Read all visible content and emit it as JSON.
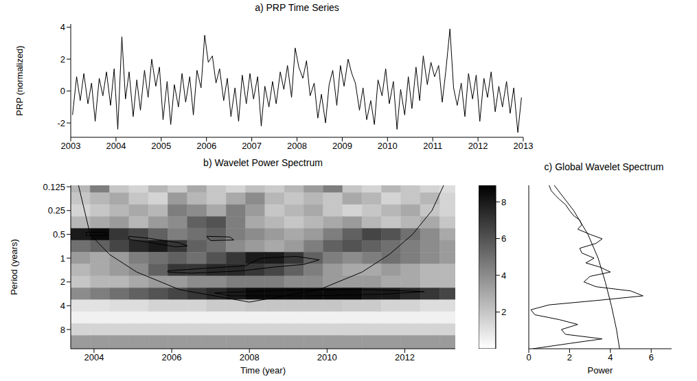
{
  "chart_data": [
    {
      "type": "line",
      "title": "a) PRP Time Series",
      "ylabel": "PRP (normalized)",
      "color": "#000000",
      "xlim": [
        2003,
        2013
      ],
      "xticks": [
        2003,
        2004,
        2005,
        2006,
        2007,
        2008,
        2009,
        2010,
        2011,
        2012,
        2013
      ],
      "ylim": [
        -2.9,
        4.2
      ],
      "yticks": [
        -2,
        0,
        2,
        4
      ],
      "x": [
        2003.04,
        2003.13,
        2003.21,
        2003.29,
        2003.38,
        2003.46,
        2003.54,
        2003.63,
        2003.71,
        2003.79,
        2003.88,
        2003.96,
        2004.04,
        2004.13,
        2004.21,
        2004.29,
        2004.38,
        2004.46,
        2004.54,
        2004.63,
        2004.71,
        2004.79,
        2004.88,
        2004.96,
        2005.04,
        2005.13,
        2005.21,
        2005.29,
        2005.38,
        2005.46,
        2005.54,
        2005.63,
        2005.71,
        2005.79,
        2005.88,
        2005.96,
        2006.04,
        2006.13,
        2006.21,
        2006.29,
        2006.38,
        2006.46,
        2006.54,
        2006.63,
        2006.71,
        2006.79,
        2006.88,
        2006.96,
        2007.04,
        2007.13,
        2007.21,
        2007.29,
        2007.38,
        2007.46,
        2007.54,
        2007.63,
        2007.71,
        2007.79,
        2007.88,
        2007.96,
        2008.04,
        2008.13,
        2008.21,
        2008.29,
        2008.38,
        2008.46,
        2008.54,
        2008.63,
        2008.71,
        2008.79,
        2008.88,
        2008.96,
        2009.04,
        2009.13,
        2009.21,
        2009.29,
        2009.38,
        2009.46,
        2009.54,
        2009.63,
        2009.71,
        2009.79,
        2009.88,
        2009.96,
        2010.04,
        2010.13,
        2010.21,
        2010.29,
        2010.38,
        2010.46,
        2010.54,
        2010.63,
        2010.71,
        2010.79,
        2010.88,
        2010.96,
        2011.04,
        2011.13,
        2011.21,
        2011.29,
        2011.38,
        2011.46,
        2011.54,
        2011.63,
        2011.71,
        2011.79,
        2011.88,
        2011.96,
        2012.04,
        2012.13,
        2012.21,
        2012.29,
        2012.38,
        2012.46,
        2012.54,
        2012.63,
        2012.71,
        2012.79,
        2012.88,
        2012.96
      ],
      "values": [
        -1.5,
        0.9,
        -0.6,
        1.1,
        -0.8,
        0.5,
        -1.9,
        0.8,
        -0.3,
        1.2,
        -0.9,
        1.4,
        -2.4,
        3.4,
        -0.5,
        1.2,
        -1.6,
        0.7,
        -1.2,
        1.3,
        -0.4,
        2.0,
        0.3,
        1.5,
        -1.8,
        0.6,
        -2.1,
        0.4,
        -1.0,
        1.1,
        -0.7,
        0.9,
        -1.5,
        1.3,
        0.2,
        3.5,
        1.8,
        2.2,
        0.5,
        1.4,
        -0.6,
        0.8,
        -1.6,
        0.2,
        -1.9,
        1.0,
        -0.8,
        1.1,
        -0.5,
        0.9,
        -2.2,
        0.3,
        -1.0,
        0.6,
        -0.8,
        1.2,
        0.1,
        1.6,
        -0.4,
        2.7,
        1.5,
        0.8,
        1.9,
        -0.3,
        0.5,
        -1.7,
        -0.2,
        -2.0,
        0.4,
        1.3,
        -0.9,
        1.6,
        0.3,
        2.0,
        1.1,
        0.5,
        -1.2,
        0.2,
        -1.8,
        -0.6,
        -2.1,
        0.7,
        -0.3,
        1.4,
        -0.8,
        0.6,
        -2.4,
        0.1,
        -1.5,
        0.9,
        -1.1,
        1.5,
        -0.6,
        2.2,
        0.4,
        1.8,
        0.9,
        1.6,
        -0.7,
        1.3,
        3.9,
        0.2,
        -0.9,
        0.5,
        -1.6,
        1.1,
        -0.5,
        1.0,
        -1.9,
        0.8,
        -0.4,
        1.2,
        -1.3,
        0.3,
        -1.0,
        0.6,
        -1.4,
        0.2,
        -2.6,
        -0.4
      ]
    },
    {
      "type": "heatmap",
      "title": "b) Wavelet Power Spectrum",
      "xlabel": "Time (year)",
      "ylabel": "Period (years)",
      "log": "y",
      "xlim": [
        2003.4,
        2013.3
      ],
      "xticks": [
        2004,
        2006,
        2008,
        2010,
        2012
      ],
      "ylim": [
        0.12,
        14
      ],
      "yticks": [
        0.125,
        0.25,
        0.5,
        1,
        2,
        4,
        8
      ],
      "x": [
        2003.65,
        2004.15,
        2004.65,
        2005.15,
        2005.65,
        2006.15,
        2006.65,
        2007.15,
        2007.65,
        2008.15,
        2008.65,
        2009.15,
        2009.65,
        2010.15,
        2010.65,
        2011.15,
        2011.65,
        2012.15,
        2012.65,
        2013.15
      ],
      "y": [
        0.125,
        0.177,
        0.25,
        0.354,
        0.5,
        0.707,
        1,
        1.41,
        2,
        2.83,
        4,
        5.66,
        8,
        11.3
      ],
      "cells": [
        [
          2.5,
          4.5,
          2.0,
          1.5,
          2.5,
          1.8,
          3.0,
          2.0,
          1.5,
          2.2,
          1.8,
          2.5,
          3.5,
          4.5,
          2.0,
          1.5,
          2.5,
          2.0,
          1.5,
          1.2
        ],
        [
          2.0,
          2.5,
          3.0,
          2.0,
          1.5,
          3.5,
          2.5,
          2.0,
          3.0,
          4.0,
          2.5,
          2.0,
          2.5,
          2.0,
          3.0,
          2.5,
          1.5,
          2.0,
          2.5,
          1.5
        ],
        [
          1.5,
          2.0,
          2.5,
          3.0,
          2.5,
          4.5,
          4.0,
          3.0,
          4.5,
          3.5,
          2.0,
          2.5,
          3.0,
          2.0,
          1.5,
          2.0,
          2.5,
          3.0,
          2.0,
          1.5
        ],
        [
          2.5,
          3.0,
          3.5,
          2.5,
          3.5,
          4.0,
          5.5,
          6.0,
          4.5,
          3.0,
          2.5,
          2.0,
          2.5,
          3.0,
          3.5,
          2.5,
          2.0,
          2.5,
          3.0,
          2.0
        ],
        [
          8.0,
          8.5,
          7.0,
          6.5,
          5.5,
          4.5,
          5.0,
          5.5,
          4.5,
          4.0,
          3.5,
          3.0,
          3.5,
          4.5,
          5.5,
          6.5,
          6.0,
          5.0,
          4.0,
          3.0
        ],
        [
          5.0,
          5.5,
          6.5,
          7.5,
          8.0,
          7.0,
          5.5,
          5.0,
          4.0,
          3.5,
          3.0,
          3.5,
          4.5,
          5.5,
          6.0,
          5.5,
          5.0,
          4.5,
          4.0,
          3.5
        ],
        [
          3.5,
          3.0,
          3.5,
          4.5,
          5.0,
          5.5,
          5.0,
          6.0,
          7.0,
          8.0,
          8.0,
          7.0,
          5.5,
          4.5,
          4.0,
          4.5,
          5.0,
          4.5,
          4.0,
          3.5
        ],
        [
          2.5,
          3.0,
          3.5,
          4.0,
          5.5,
          7.0,
          7.0,
          7.5,
          7.5,
          7.0,
          6.5,
          5.5,
          4.5,
          3.5,
          3.0,
          3.0,
          3.5,
          3.0,
          2.5,
          2.5
        ],
        [
          2.0,
          2.5,
          2.5,
          3.0,
          3.5,
          3.5,
          4.0,
          4.0,
          4.5,
          4.5,
          4.5,
          4.0,
          4.0,
          3.5,
          3.5,
          3.5,
          3.0,
          3.0,
          2.5,
          2.5
        ],
        [
          4.0,
          4.5,
          5.0,
          5.5,
          6.0,
          6.5,
          7.0,
          7.5,
          8.0,
          8.5,
          8.5,
          8.5,
          8.5,
          8.5,
          8.5,
          8.0,
          8.0,
          7.5,
          7.0,
          6.5
        ],
        [
          1.0,
          1.0,
          1.2,
          1.2,
          1.5,
          1.5,
          1.5,
          1.8,
          1.8,
          2.0,
          2.0,
          2.0,
          2.0,
          2.0,
          1.8,
          1.8,
          1.5,
          1.5,
          1.2,
          1.2
        ],
        [
          0.5,
          0.5,
          0.5,
          0.5,
          0.5,
          0.5,
          0.5,
          0.5,
          0.5,
          0.5,
          0.5,
          0.5,
          0.5,
          0.5,
          0.5,
          0.5,
          0.5,
          0.5,
          0.5,
          0.5
        ],
        [
          1.5,
          1.5,
          1.5,
          1.5,
          1.5,
          1.5,
          1.5,
          1.5,
          1.5,
          1.5,
          1.5,
          1.5,
          1.5,
          1.5,
          1.5,
          1.5,
          1.5,
          1.5,
          1.5,
          1.5
        ],
        [
          3.5,
          3.5,
          3.5,
          3.5,
          3.5,
          3.5,
          3.5,
          3.5,
          3.5,
          3.5,
          3.5,
          3.5,
          3.5,
          3.5,
          3.5,
          3.5,
          3.5,
          3.5,
          3.5,
          3.5
        ]
      ],
      "colorbar": {
        "lim": [
          0,
          8.9
        ],
        "ticks": [
          2,
          4,
          6,
          8
        ]
      },
      "cone_of_influence": {
        "x": [
          2003.6,
          2003.9,
          2004.4,
          2005.1,
          2006.2,
          2008.0,
          2009.8,
          2010.9,
          2011.6,
          2012.2,
          2012.7,
          2013.0
        ],
        "y": [
          0.12,
          0.5,
          0.9,
          1.5,
          2.5,
          3.6,
          2.5,
          1.5,
          0.9,
          0.5,
          0.25,
          0.12
        ]
      },
      "significance_contours": [
        [
          [
            2003.8,
            0.47
          ],
          [
            2004.3,
            0.47
          ],
          [
            2004.35,
            0.52
          ],
          [
            2003.8,
            0.52
          ],
          [
            2003.8,
            0.47
          ]
        ],
        [
          [
            2004.9,
            0.53
          ],
          [
            2005.4,
            0.56
          ],
          [
            2006.2,
            0.64
          ],
          [
            2006.4,
            0.7
          ],
          [
            2006.1,
            0.72
          ],
          [
            2005.5,
            0.64
          ],
          [
            2004.9,
            0.58
          ],
          [
            2004.9,
            0.53
          ]
        ],
        [
          [
            2006.9,
            0.53
          ],
          [
            2007.5,
            0.54
          ],
          [
            2007.6,
            0.59
          ],
          [
            2007.0,
            0.6
          ],
          [
            2006.9,
            0.53
          ]
        ],
        [
          [
            2005.9,
            1.45
          ],
          [
            2006.8,
            1.35
          ],
          [
            2007.9,
            1.25
          ],
          [
            2008.3,
            1.0
          ],
          [
            2009.2,
            0.95
          ],
          [
            2009.8,
            1.05
          ],
          [
            2009.4,
            1.2
          ],
          [
            2008.6,
            1.3
          ],
          [
            2007.8,
            1.45
          ],
          [
            2006.5,
            1.55
          ],
          [
            2005.9,
            1.5
          ],
          [
            2005.9,
            1.45
          ]
        ],
        [
          [
            2007.1,
            2.75
          ],
          [
            2009.0,
            2.55
          ],
          [
            2011.0,
            2.5
          ],
          [
            2012.5,
            2.65
          ],
          [
            2011.5,
            2.85
          ],
          [
            2009.5,
            3.0
          ],
          [
            2007.5,
            3.0
          ],
          [
            2007.1,
            2.75
          ]
        ]
      ]
    },
    {
      "type": "line",
      "title": "c) Global Wavelet Spectrum",
      "xlabel": "Power",
      "log": "y",
      "tick_labels": "x",
      "xlim": [
        0,
        7
      ],
      "xticks": [
        0,
        2,
        4,
        6
      ],
      "ylim": [
        0.12,
        14
      ],
      "yticks": [
        0.125,
        0.25,
        0.5,
        1,
        2,
        4,
        8
      ],
      "series": [
        {
          "color": "#000000",
          "y": [
            0.12,
            0.14,
            0.16,
            0.18,
            0.21,
            0.25,
            0.29,
            0.33,
            0.38,
            0.43,
            0.5,
            0.57,
            0.65,
            0.75,
            0.86,
            1.0,
            1.15,
            1.3,
            1.5,
            1.7,
            2.0,
            2.3,
            2.6,
            3.0,
            3.4,
            3.9,
            4.5,
            5.2,
            6.0,
            6.9,
            8.0,
            9.2,
            10.5,
            12,
            14
          ],
          "x": [
            1.0,
            1.1,
            1.3,
            1.5,
            1.8,
            2.0,
            2.2,
            2.5,
            2.6,
            2.4,
            3.0,
            3.6,
            3.3,
            2.5,
            2.6,
            3.2,
            2.8,
            3.5,
            4.0,
            3.0,
            2.7,
            3.3,
            5.0,
            5.6,
            3.5,
            1.0,
            0.1,
            0.3,
            1.5,
            2.4,
            1.6,
            1.8,
            3.6,
            2.0,
            0.2
          ]
        },
        {
          "color": "#000000",
          "y": [
            0.12,
            0.25,
            0.5,
            1,
            2,
            4,
            8,
            14
          ],
          "x": [
            1.25,
            2.2,
            2.9,
            3.4,
            3.75,
            4.05,
            4.3,
            4.45
          ]
        }
      ]
    }
  ]
}
